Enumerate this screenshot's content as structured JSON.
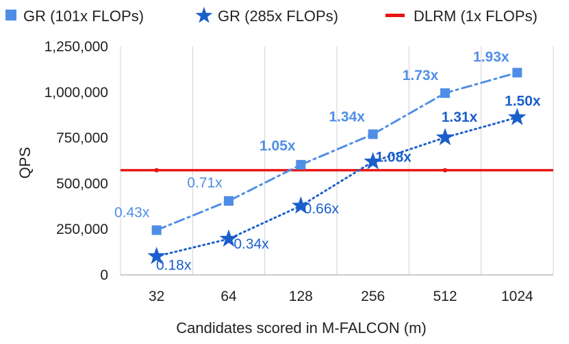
{
  "chart_data": {
    "type": "line",
    "title": "",
    "xlabel": "Candidates scored in M-FALCON (m)",
    "ylabel": "QPS",
    "categories": [
      "32",
      "64",
      "128",
      "256",
      "512",
      "1024"
    ],
    "ylim": [
      0,
      1250000
    ],
    "yticks": [
      "0",
      "250,000",
      "500,000",
      "750,000",
      "1,000,000",
      "1,250,000"
    ],
    "grid": "vertical",
    "legend_position": "top",
    "series": [
      {
        "name": "GR (101x FLOPs)",
        "values": [
          245000,
          405000,
          603000,
          770000,
          995000,
          1107000
        ],
        "labels": [
          "0.43x",
          "0.71x",
          "1.05x",
          "1.34x",
          "1.73x",
          "1.93x"
        ],
        "label_bold": [
          false,
          false,
          true,
          true,
          true,
          true
        ],
        "marker": "square",
        "line_style": "dash-dot",
        "color": "#4f8ee6"
      },
      {
        "name": "GR (285x FLOPs)",
        "values": [
          102000,
          197000,
          378000,
          620000,
          752000,
          862000
        ],
        "labels": [
          "0.18x",
          "0.34x",
          "0.66x",
          "1.08x",
          "1.31x",
          "1.50x"
        ],
        "label_bold": [
          false,
          false,
          false,
          true,
          true,
          true
        ],
        "marker": "star",
        "line_style": "dotted",
        "color": "#1a5fcc"
      },
      {
        "name": "DLRM (1x FLOPs)",
        "values": [
          573000,
          573000,
          573000,
          573000,
          573000,
          573000
        ],
        "marker": "line",
        "line_style": "solid",
        "color": "#e81414"
      }
    ]
  }
}
